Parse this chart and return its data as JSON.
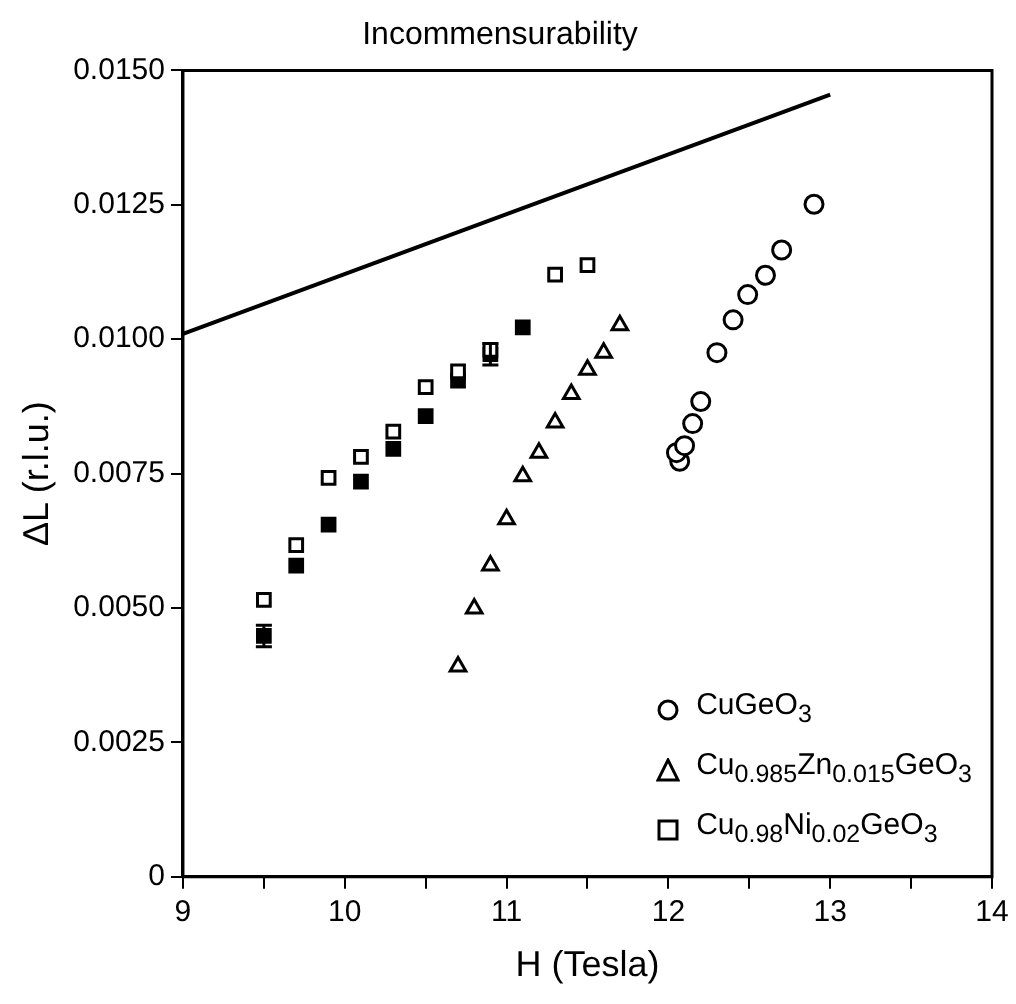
{
  "chart_data": {
    "type": "scatter",
    "title": "Incommensurability",
    "xlabel": "H (Tesla)",
    "ylabel": "ΔL (r.l.u.)",
    "xlim": [
      9,
      14
    ],
    "xticks": [
      9,
      {
        "value": 9.5,
        "label": null
      },
      10,
      {
        "value": 10.5,
        "label": null
      },
      11,
      {
        "value": 11.5,
        "label": null
      },
      12,
      {
        "value": 12.5,
        "label": null
      },
      13,
      {
        "value": 13.5,
        "label": null
      },
      14
    ],
    "ylim": [
      0,
      0.015
    ],
    "yticks": [
      0,
      0.0025,
      {
        "value": 0.005,
        "label": "0.0050"
      },
      0.0075,
      {
        "value": 0.01,
        "label": "0.0100"
      },
      0.0125,
      {
        "value": 0.015,
        "label": "0.0150"
      }
    ],
    "grid": false,
    "legend": "bottom right",
    "series": [
      {
        "name": "CuGeO$_{3}$",
        "color": "#000000",
        "marker": "circle",
        "x": [
          12.07,
          12.05,
          12.1,
          12.15,
          12.2,
          12.3,
          12.4,
          12.49,
          12.6,
          12.7,
          12.9
        ],
        "values": [
          0.00773,
          0.00789,
          0.00802,
          0.00843,
          0.00884,
          0.00975,
          0.01036,
          0.01083,
          0.01119,
          0.01166,
          0.01251
        ]
      },
      {
        "name": "Cu$_{0.985}$Zn$_{0.015}$GeO$_{3}$",
        "color": "#000000",
        "marker": "triangle",
        "x": [
          10.7,
          10.8,
          10.9,
          11.0,
          11.1,
          11.2,
          11.3,
          11.4,
          11.5,
          11.6,
          11.7
        ],
        "values": [
          0.00391,
          0.00499,
          0.00579,
          0.00665,
          0.00745,
          0.00789,
          0.00845,
          0.00898,
          0.00943,
          0.00975,
          0.01026
        ]
      },
      {
        "name": "Cu$_{0.98}$Ni$_{0.02}$GeO$_{3}$",
        "color": "#000000",
        "marker": "square",
        "x": [
          9.5,
          9.7,
          9.9,
          10.1,
          10.3,
          10.5,
          10.7,
          10.9,
          11.3,
          11.5
        ],
        "values": [
          0.00515,
          0.00617,
          0.00742,
          0.00781,
          0.00828,
          0.00911,
          0.0094,
          0.0098,
          0.0112,
          0.01138
        ]
      },
      {
        "color": "#000000",
        "marker": "square",
        "x": [
          9.5,
          9.7,
          9.9,
          10.1,
          10.3,
          10.5,
          10.7,
          10.9,
          11.1
        ],
        "values": [
          0.00448,
          0.00579,
          0.00655,
          0.00735,
          0.00796,
          0.00857,
          0.00923,
          0.00972,
          0.01022
        ],
        "errors": [
          0.0002,
          null,
          null,
          null,
          null,
          null,
          null,
          0.0002,
          null
        ]
      },
      {
        "type": "line",
        "color": "#000000",
        "marker": "none",
        "x": [
          9,
          13
        ],
        "values": [
          0.0101,
          0.01455
        ]
      }
    ]
  }
}
